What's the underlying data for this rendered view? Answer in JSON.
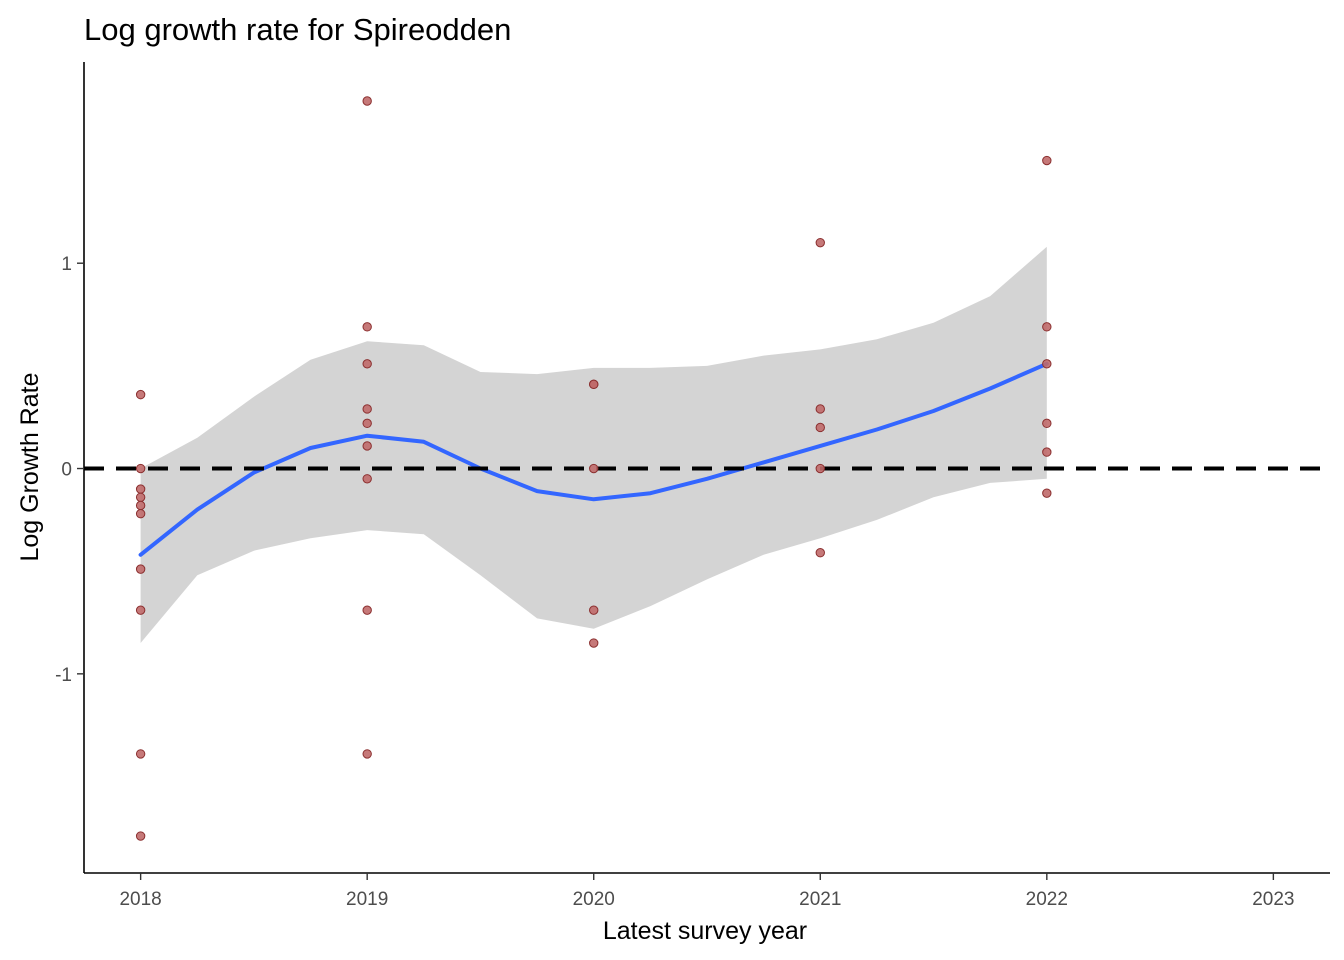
{
  "chart_data": {
    "type": "scatter",
    "title": "Log growth rate for Spireodden",
    "xlabel": "Latest survey year",
    "ylabel": "Log Growth Rate",
    "xlim": [
      2017.75,
      2023.25
    ],
    "ylim": [
      -1.97,
      1.98
    ],
    "x_ticks": [
      "2018",
      "2019",
      "2020",
      "2021",
      "2022",
      "2023"
    ],
    "y_ticks": [
      "-1",
      "0",
      "1"
    ],
    "grid": false,
    "legend": "none",
    "reference_line": {
      "y": 0,
      "style": "dashed",
      "color": "#000000"
    },
    "colors": {
      "points": "#c06a6a",
      "point_outline": "#8b2f2f",
      "smooth_line": "#3366ff",
      "confidence_band": "#d4d4d4"
    },
    "series": [
      {
        "type": "points",
        "points": [
          [
            2018,
            0.36
          ],
          [
            2018,
            0.0
          ],
          [
            2018,
            -0.1
          ],
          [
            2018,
            -0.14
          ],
          [
            2018,
            -0.18
          ],
          [
            2018,
            -0.22
          ],
          [
            2018,
            -0.49
          ],
          [
            2018,
            -0.69
          ],
          [
            2018,
            -1.39
          ],
          [
            2018,
            -1.79
          ],
          [
            2019,
            1.79
          ],
          [
            2019,
            0.69
          ],
          [
            2019,
            0.51
          ],
          [
            2019,
            0.29
          ],
          [
            2019,
            0.22
          ],
          [
            2019,
            0.11
          ],
          [
            2019,
            -0.05
          ],
          [
            2019,
            -0.69
          ],
          [
            2019,
            -1.39
          ],
          [
            2020,
            0.41
          ],
          [
            2020,
            0.41
          ],
          [
            2020,
            0.0
          ],
          [
            2020,
            -0.69
          ],
          [
            2020,
            -0.85
          ],
          [
            2021,
            1.1
          ],
          [
            2021,
            0.29
          ],
          [
            2021,
            0.2
          ],
          [
            2021,
            0.0
          ],
          [
            2021,
            -0.41
          ],
          [
            2022,
            1.5
          ],
          [
            2022,
            0.69
          ],
          [
            2022,
            0.51
          ],
          [
            2022,
            0.22
          ],
          [
            2022,
            0.08
          ],
          [
            2022,
            -0.12
          ]
        ]
      },
      {
        "type": "smooth",
        "x": [
          2018.0,
          2018.25,
          2018.5,
          2018.75,
          2019.0,
          2019.25,
          2019.5,
          2019.75,
          2020.0,
          2020.25,
          2020.5,
          2020.75,
          2021.0,
          2021.25,
          2021.5,
          2021.75,
          2022.0
        ],
        "y": [
          -0.42,
          -0.2,
          -0.02,
          0.1,
          0.16,
          0.13,
          0.0,
          -0.11,
          -0.15,
          -0.12,
          -0.05,
          0.03,
          0.11,
          0.19,
          0.28,
          0.39,
          0.51
        ],
        "lower": [
          -0.85,
          -0.52,
          -0.4,
          -0.34,
          -0.3,
          -0.32,
          -0.52,
          -0.73,
          -0.78,
          -0.67,
          -0.54,
          -0.42,
          -0.34,
          -0.25,
          -0.14,
          -0.07,
          -0.05
        ],
        "upper": [
          0.0,
          0.15,
          0.35,
          0.53,
          0.62,
          0.6,
          0.47,
          0.46,
          0.49,
          0.49,
          0.5,
          0.55,
          0.58,
          0.63,
          0.71,
          0.84,
          1.08
        ]
      }
    ]
  }
}
